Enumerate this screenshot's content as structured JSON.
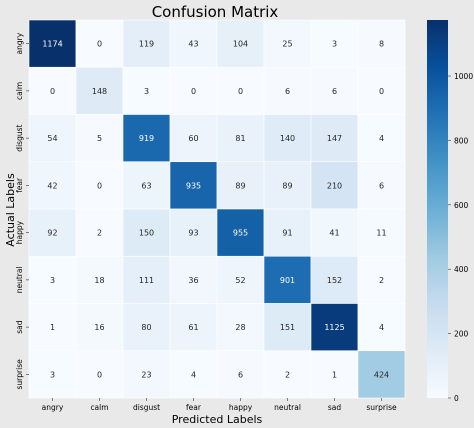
{
  "chart_data": {
    "type": "heatmap",
    "title": "Confusion Matrix",
    "xlabel": "Predicted Labels",
    "ylabel": "Actual Labels",
    "x_categories": [
      "angry",
      "calm",
      "disgust",
      "fear",
      "happy",
      "neutral",
      "sad",
      "surprise"
    ],
    "y_categories": [
      "angry",
      "calm",
      "disgust",
      "fear",
      "happy",
      "neutral",
      "sad",
      "surprise"
    ],
    "values": [
      [
        1174,
        0,
        119,
        43,
        104,
        25,
        3,
        8
      ],
      [
        0,
        148,
        3,
        0,
        0,
        6,
        6,
        0
      ],
      [
        54,
        5,
        919,
        60,
        81,
        140,
        147,
        4
      ],
      [
        42,
        0,
        63,
        935,
        89,
        89,
        210,
        6
      ],
      [
        92,
        2,
        150,
        93,
        955,
        91,
        41,
        11
      ],
      [
        3,
        18,
        111,
        36,
        52,
        901,
        152,
        2
      ],
      [
        1,
        16,
        80,
        61,
        28,
        151,
        1125,
        4
      ],
      [
        3,
        0,
        23,
        4,
        6,
        2,
        1,
        424
      ]
    ],
    "colormap": "Blues",
    "color_range": [
      0,
      1174
    ],
    "colorbar": {
      "ticks": [
        0,
        200,
        400,
        600,
        800,
        1000
      ],
      "colors": [
        "#f7fbff",
        "#deebf7",
        "#c6dbef",
        "#9ecae1",
        "#6baed6",
        "#4292c6",
        "#2171b5",
        "#08519c",
        "#08306b"
      ]
    },
    "annotations": true
  }
}
